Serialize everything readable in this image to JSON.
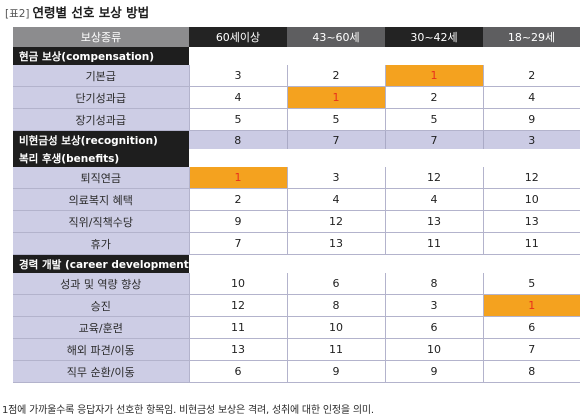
{
  "caption": {
    "tag": "[표2]",
    "title": "연령별 선호 보상 방법"
  },
  "header": {
    "category": "보상종류",
    "columns": [
      "60세이상",
      "43~60세",
      "30~42세",
      "18~29세"
    ]
  },
  "sections": [
    {
      "label": "현금 보상(compensation)",
      "rows": [
        {
          "label": "기본급",
          "values": [
            "3",
            "2",
            "1",
            "2"
          ]
        },
        {
          "label": "단기성과급",
          "values": [
            "4",
            "1",
            "2",
            "4"
          ]
        },
        {
          "label": "장기성과급",
          "values": [
            "5",
            "5",
            "5",
            "9"
          ]
        }
      ]
    },
    {
      "label": "비현금성 보상(recognition)",
      "values": [
        "8",
        "7",
        "7",
        "3"
      ]
    },
    {
      "label": "복리 후생(benefits)",
      "rows": [
        {
          "label": "퇴직연금",
          "values": [
            "1",
            "3",
            "12",
            "12"
          ]
        },
        {
          "label": "의료복지 혜택",
          "values": [
            "2",
            "4",
            "4",
            "10"
          ]
        },
        {
          "label": "직위/직책수당",
          "values": [
            "9",
            "12",
            "13",
            "13"
          ]
        },
        {
          "label": "휴가",
          "values": [
            "7",
            "13",
            "11",
            "11"
          ]
        }
      ]
    },
    {
      "label": "경력 개발 (career development)",
      "rows": [
        {
          "label": "성과 및 역량 향상",
          "values": [
            "10",
            "6",
            "8",
            "5"
          ]
        },
        {
          "label": "승진",
          "values": [
            "12",
            "8",
            "3",
            "1"
          ]
        },
        {
          "label": "교육/훈련",
          "values": [
            "11",
            "10",
            "6",
            "6"
          ]
        },
        {
          "label": "해외 파견/이동",
          "values": [
            "13",
            "11",
            "10",
            "7"
          ]
        },
        {
          "label": "직무 순환/이동",
          "values": [
            "6",
            "9",
            "9",
            "8"
          ]
        }
      ]
    }
  ],
  "colors": {
    "highlight": "#f4a21f",
    "highlight_text": "#e8301c",
    "label_bg": "#cdcde5",
    "section_bg": "#1e1e1e"
  },
  "footnote": "1점에 가까울수록 응답자가 선호한 항목임. 비현금성 보상은 격려, 성취에 대한 인정을 의미."
}
